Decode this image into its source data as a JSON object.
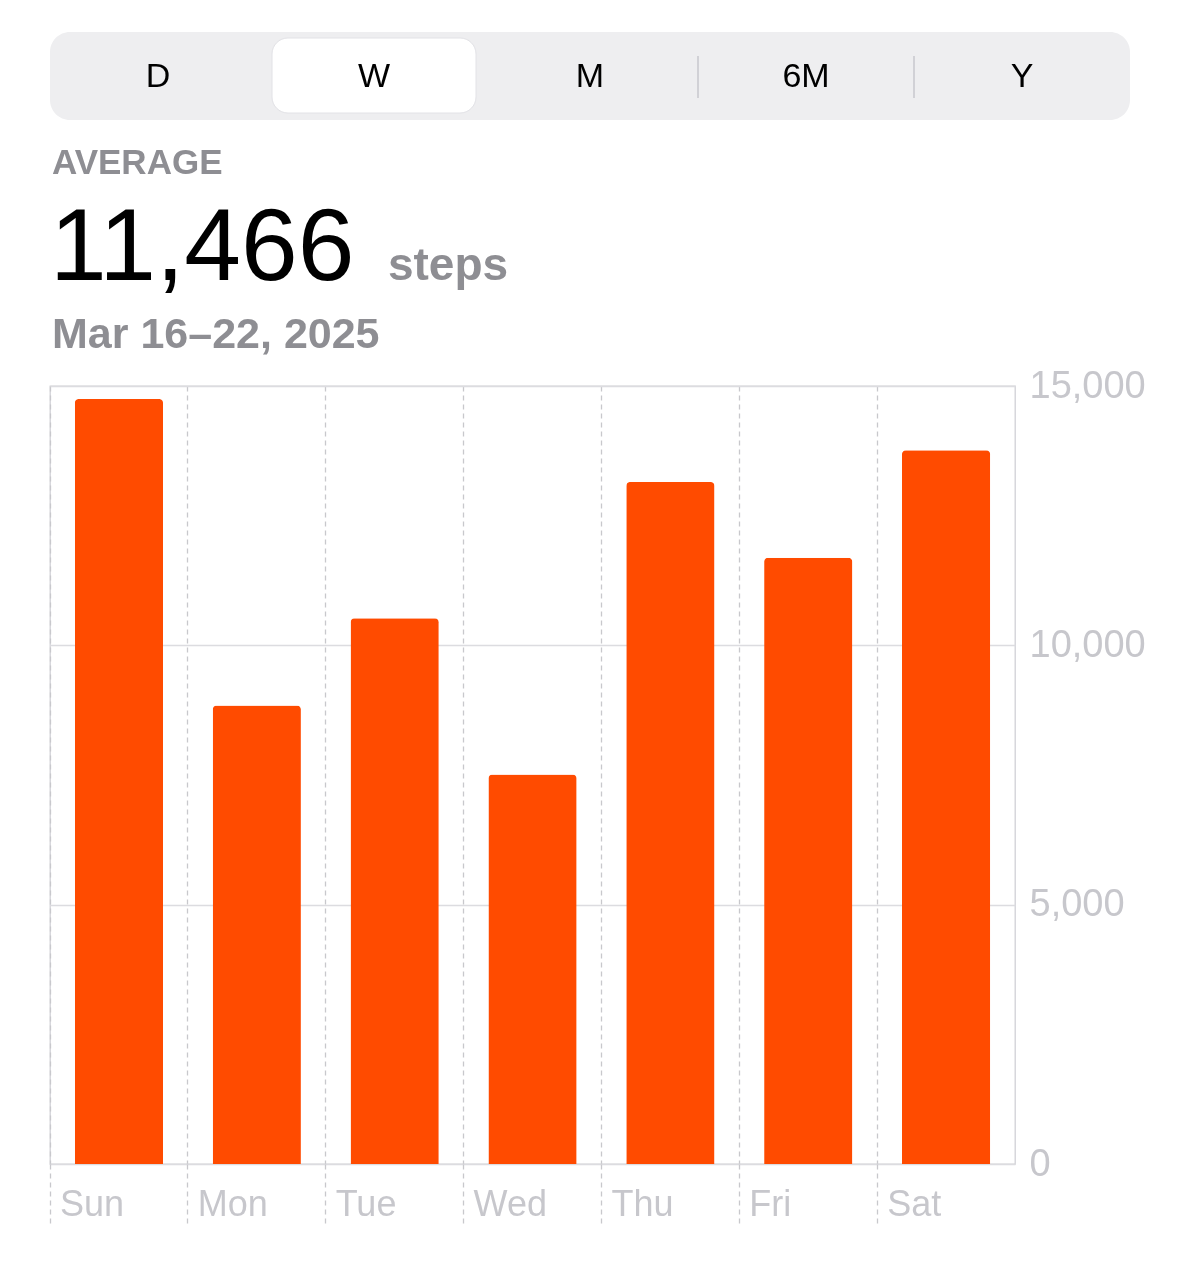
{
  "chart_data": {
    "type": "bar",
    "title": "11,466",
    "subtitle": "Mar 16–22, 2025",
    "annotations": [
      "AVERAGE",
      "steps",
      "D",
      "W",
      "M",
      "6M",
      "Y"
    ],
    "categories": [
      "Sun",
      "Mon",
      "Tue",
      "Wed",
      "Thu",
      "Fri",
      "Sat"
    ],
    "series": [
      {
        "color": "#ff4b00",
        "values": [
          14750,
          8840,
          10520,
          7510,
          13150,
          11690,
          13760
        ]
      }
    ],
    "ylim": [
      0,
      15000
    ],
    "yticks": [
      0,
      {
        "value": 5000,
        "label": "5,000"
      },
      {
        "value": 10000,
        "label": "10,000"
      },
      {
        "value": 15000,
        "label": "15,000"
      }
    ],
    "grid": true
  }
}
